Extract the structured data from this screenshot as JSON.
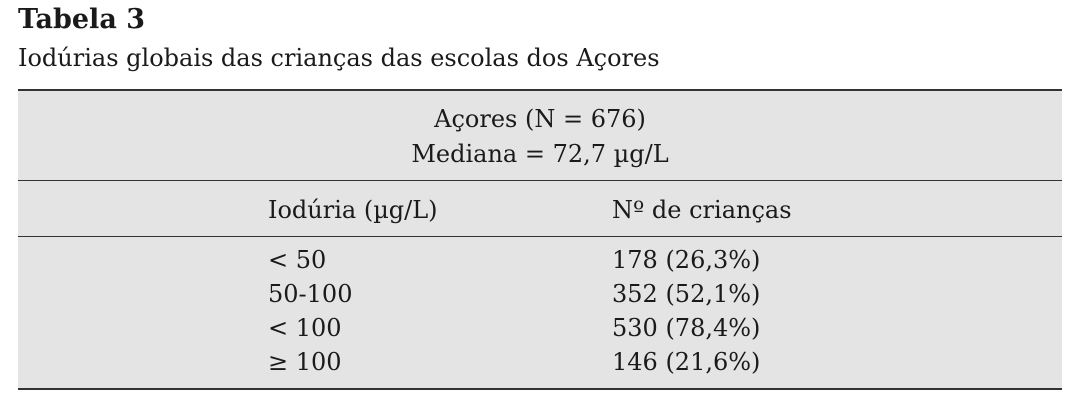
{
  "title": "Tabela 3",
  "caption": "Iodúrias globais das crianças das escolas dos Açores",
  "table": {
    "group_header": [
      "Açores (N = 676)",
      "Mediana = 72,7 µg/L"
    ],
    "columns": [
      "Iodúria (µg/L)",
      "Nº de crianças"
    ],
    "rows": [
      [
        "< 50",
        "178 (26,3%)"
      ],
      [
        "50-100",
        "352 (52,1%)"
      ],
      [
        "< 100",
        "530 (78,4%)"
      ],
      [
        "≥ 100",
        "146 (21,6%)"
      ]
    ]
  }
}
